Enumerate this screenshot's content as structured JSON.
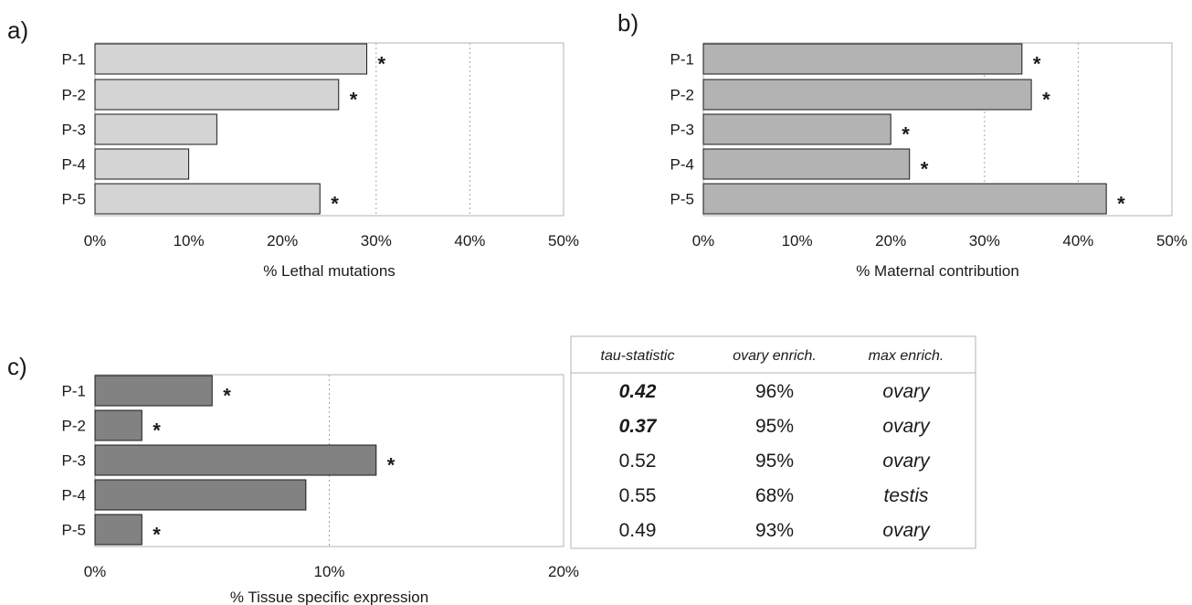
{
  "colors": {
    "panel_a_bar": "#d4d4d4",
    "panel_b_bar": "#b3b3b3",
    "panel_c_bar": "#828282",
    "frame": "#b3b3b3",
    "grid": "#a6a6a6"
  },
  "chart_data": [
    {
      "type": "bar",
      "orientation": "horizontal",
      "panel_label": "a)",
      "categories": [
        "P-1",
        "P-2",
        "P-3",
        "P-4",
        "P-5"
      ],
      "values": [
        29,
        26,
        13,
        10,
        24
      ],
      "significant": [
        true,
        true,
        false,
        false,
        true
      ],
      "annotation_symbol": "*",
      "xlabel": "% Lethal mutations",
      "xlim": [
        0,
        50
      ],
      "xticks": [
        "0%",
        "10%",
        "20%",
        "30%",
        "40%",
        "50%"
      ],
      "grid": "vertical dotted at 30%, 40%"
    },
    {
      "type": "bar",
      "orientation": "horizontal",
      "panel_label": "b)",
      "categories": [
        "P-1",
        "P-2",
        "P-3",
        "P-4",
        "P-5"
      ],
      "values": [
        34,
        35,
        20,
        22,
        43
      ],
      "significant": [
        true,
        true,
        true,
        true,
        true
      ],
      "annotation_symbol": "*",
      "xlabel": "% Maternal contribution",
      "xlim": [
        0,
        50
      ],
      "xticks": [
        "0%",
        "10%",
        "20%",
        "30%",
        "40%",
        "50%"
      ],
      "grid": "vertical dotted at 30%, 40%"
    },
    {
      "type": "bar",
      "orientation": "horizontal",
      "panel_label": "c)",
      "categories": [
        "P-1",
        "P-2",
        "P-3",
        "P-4",
        "P-5"
      ],
      "values": [
        5,
        2,
        12,
        9,
        2
      ],
      "significant": [
        true,
        true,
        true,
        false,
        true
      ],
      "annotation_symbol": "*",
      "xlabel": "% Tissue specific expression",
      "xlim": [
        0,
        20
      ],
      "xticks": [
        "0%",
        "10%",
        "20%"
      ],
      "grid": "vertical dotted at 10%"
    },
    {
      "type": "table",
      "columns": [
        "tau-statistic",
        "ovary enrich.",
        "max enrich."
      ],
      "rows": [
        {
          "tau": "0.42",
          "tau_bold": true,
          "ovary": "96%",
          "max": "ovary"
        },
        {
          "tau": "0.37",
          "tau_bold": true,
          "ovary": "95%",
          "max": "ovary"
        },
        {
          "tau": "0.52",
          "tau_bold": false,
          "ovary": "95%",
          "max": "ovary"
        },
        {
          "tau": "0.55",
          "tau_bold": false,
          "ovary": "68%",
          "max": "testis"
        },
        {
          "tau": "0.49",
          "tau_bold": false,
          "ovary": "93%",
          "max": "ovary"
        }
      ]
    }
  ]
}
